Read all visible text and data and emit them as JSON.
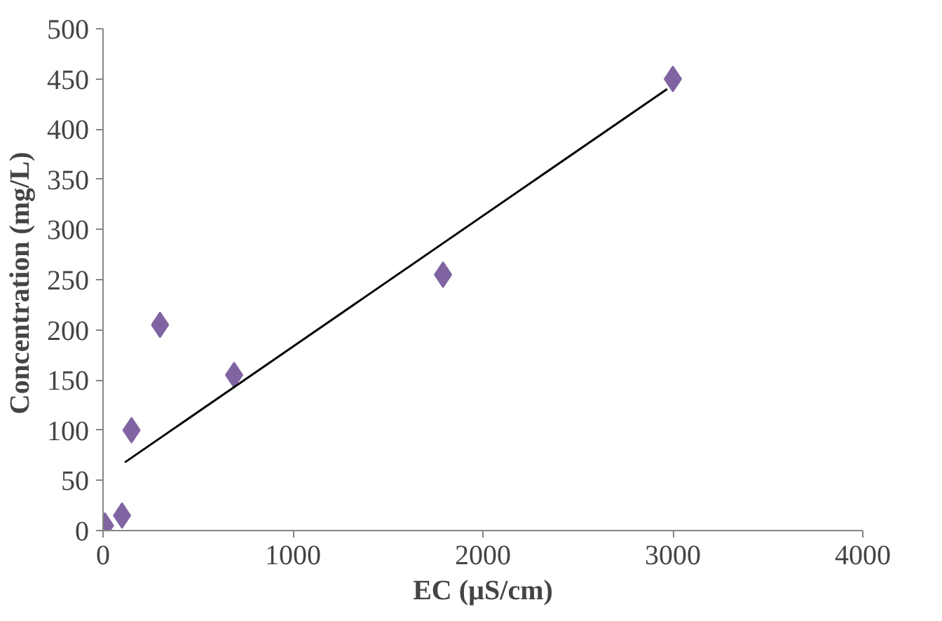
{
  "chart_data": {
    "type": "scatter",
    "xlabel": "EC (µS/cm)",
    "ylabel": "Concentration  (mg/L)",
    "xlim": [
      0,
      4000
    ],
    "ylim": [
      0,
      500
    ],
    "xticks": [
      0,
      1000,
      2000,
      3000,
      4000
    ],
    "yticks": [
      0,
      50,
      100,
      150,
      200,
      250,
      300,
      350,
      400,
      450,
      500
    ],
    "grid": false,
    "series": [
      {
        "marker": "diamond",
        "color": "#8064a2",
        "x": [
          10,
          100,
          150,
          300,
          690,
          1790,
          3000
        ],
        "values": [
          5,
          15,
          100,
          205,
          155,
          255,
          450
        ]
      },
      {
        "type": "line",
        "marker": "none",
        "color": "#000000",
        "x": [
          115,
          2970
        ],
        "values": [
          68,
          440
        ]
      }
    ]
  }
}
